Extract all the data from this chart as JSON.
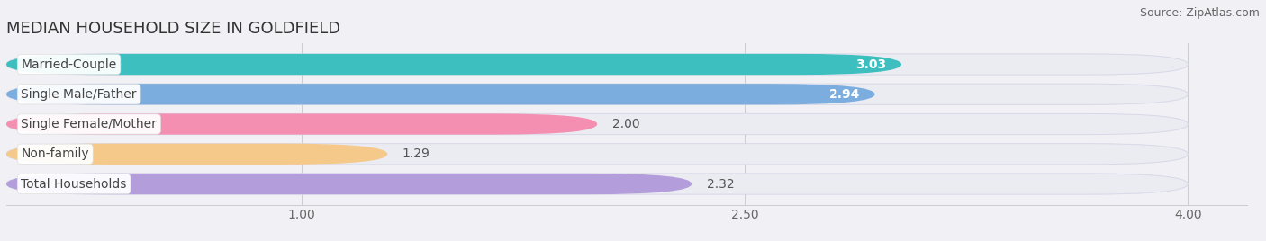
{
  "title": "MEDIAN HOUSEHOLD SIZE IN GOLDFIELD",
  "source": "Source: ZipAtlas.com",
  "categories": [
    "Married-Couple",
    "Single Male/Father",
    "Single Female/Mother",
    "Non-family",
    "Total Households"
  ],
  "values": [
    3.03,
    2.94,
    2.0,
    1.29,
    2.32
  ],
  "bar_colors": [
    "#3dbfbf",
    "#7baede",
    "#f48fb1",
    "#f5c98a",
    "#b39ddb"
  ],
  "xlim_min": 0,
  "xlim_max": 4.2,
  "xaxis_max": 4.0,
  "xticks": [
    1.0,
    2.5,
    4.0
  ],
  "background_color": "#f0f0f5",
  "bar_bg_color": "#ebebf2",
  "bar_bg_edge_color": "#d8d8e8",
  "title_fontsize": 13,
  "source_fontsize": 9,
  "label_fontsize": 10,
  "value_fontsize": 10,
  "value_white_threshold": 2.5,
  "bar_height": 0.7,
  "bar_gap": 1.0
}
